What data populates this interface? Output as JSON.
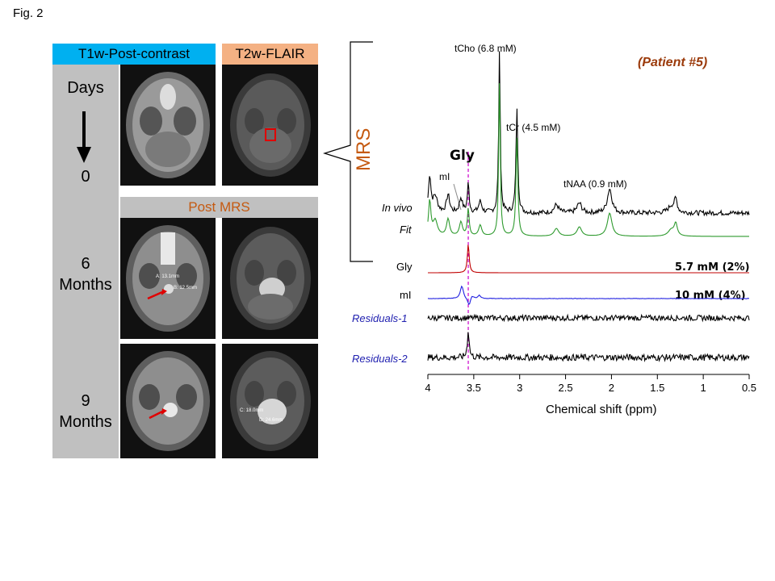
{
  "figure_label": "Fig. 2",
  "headers": {
    "t1": "T1w-Post-contrast",
    "t2": "T2w-FLAIR",
    "post_mrs": "Post MRS"
  },
  "rows": {
    "days": "Days",
    "zero": "0",
    "six": "6",
    "six_unit": "Months",
    "nine": "9",
    "nine_unit": "Months"
  },
  "mri_annotations": {
    "r2_a": "A: 13.1mm",
    "r2_b": "B: 12.5mm",
    "r3_c": "C: 18.0mm",
    "r3_d": "D: 24.6mm"
  },
  "spectrum": {
    "mrs_label": "MRS",
    "patient": "(Patient #5)",
    "peaks": {
      "tcho": "tCho (6.8 mM)",
      "tcr": "tCr (4.5 mM)",
      "tnaa": "tNAA (0.9 mM)",
      "gly": "Gly",
      "mi": "mI"
    },
    "traces": {
      "in_vivo": "In vivo",
      "fit": "Fit",
      "gly": "Gly",
      "mi": "mI",
      "res1": "Residuals-1",
      "res2": "Residuals-2"
    },
    "conc": {
      "gly": "5.7 mM (2%)",
      "mi": "10 mM (4%)"
    },
    "xaxis": {
      "label": "Chemical shift (ppm)",
      "ticks": [
        "4",
        "3.5",
        "3",
        "2.5",
        "2",
        "1.5",
        "1",
        "0.5"
      ]
    },
    "colors": {
      "in_vivo": "#000000",
      "fit": "#2e9a2e",
      "gly": "#c00000",
      "mi": "#2020e0",
      "residual_label": "#2020b0",
      "marker": "#cc00cc",
      "mrs": "#c55a11",
      "patient": "#9b3a0a"
    }
  }
}
